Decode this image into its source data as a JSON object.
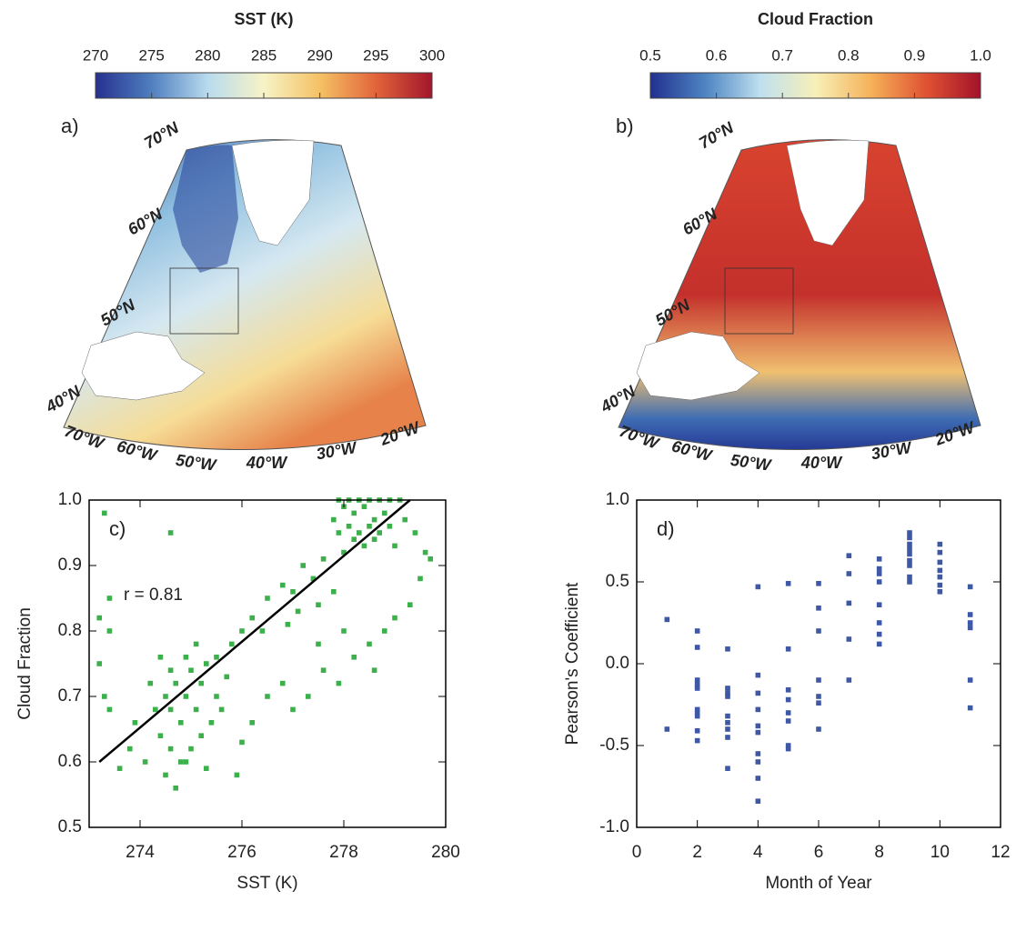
{
  "chart_data": [
    {
      "type": "map",
      "title": "SST (K)",
      "panel_label": "a)",
      "colorbar_ticks": [
        270,
        275,
        280,
        285,
        290,
        295,
        300
      ],
      "colorbar_lim": [
        270,
        300
      ],
      "colormap": [
        "#26318f",
        "#4f7fbf",
        "#b9dbee",
        "#f7f3c6",
        "#f5c165",
        "#e2643a",
        "#a3152b"
      ],
      "lat_labels": [
        "70°N",
        "60°N",
        "50°N",
        "40°N"
      ],
      "lon_labels": [
        "70°W",
        "60°W",
        "50°W",
        "40°W",
        "30°W",
        "20°W"
      ]
    },
    {
      "type": "map",
      "title": "Cloud Fraction",
      "panel_label": "b)",
      "colorbar_ticks": [
        0.5,
        0.6,
        0.7,
        0.8,
        0.9,
        {
          "value": 1,
          "label": "1.0"
        }
      ],
      "colorbar_lim": [
        0.5,
        1
      ],
      "colormap": [
        "#22308f",
        "#4d85c2",
        "#bfe0ef",
        "#f7f0b8",
        "#f6b25a",
        "#e05332",
        "#a3122a"
      ],
      "lat_labels": [
        "70°N",
        "60°N",
        "50°N",
        "40°N"
      ],
      "lon_labels": [
        "70°W",
        "60°W",
        "50°W",
        "40°W",
        "30°W",
        "20°W"
      ]
    },
    {
      "type": "scatter",
      "panel_label": "c)",
      "annotation": "r = 0.81",
      "x_label": "SST (K)",
      "y_label": "Cloud Fraction",
      "color": "#3cb04a",
      "xlim": [
        273,
        280
      ],
      "xticks": [
        274,
        276,
        278,
        280
      ],
      "ylim": [
        0.5,
        1
      ],
      "yticks": [
        0.5,
        0.6,
        0.7,
        0.8,
        0.9,
        {
          "value": 1,
          "label": "1.0"
        }
      ],
      "x": [
        277.9,
        278.1,
        278.3,
        278.5,
        278.7,
        278.9,
        279.1,
        278.0,
        278.2,
        278.4,
        278.6,
        278.8,
        278.1,
        278.3,
        278.5,
        277.9,
        278.2,
        278.4,
        278.6,
        278.0,
        278.7,
        277.8,
        278.9,
        279.2,
        279.4,
        279.6,
        279.0,
        276.5,
        276.8,
        277.0,
        277.2,
        277.4,
        277.6,
        276.2,
        276.0,
        275.8,
        275.5,
        276.4,
        277.1,
        277.5,
        277.8,
        276.9,
        274.5,
        274.6,
        274.7,
        274.8,
        274.9,
        275.0,
        275.1,
        275.2,
        275.3,
        274.4,
        274.6,
        274.8,
        274.5,
        274.7,
        275.0,
        275.2,
        275.4,
        274.3,
        274.2,
        274.9,
        275.1,
        275.5,
        275.6,
        274.1,
        273.9,
        274.4,
        274.6,
        275.7,
        274.9,
        275.3,
        276.5,
        276.8,
        277.0,
        277.3,
        277.6,
        277.9,
        278.2,
        278.5,
        278.8,
        279.0,
        279.3,
        276.2,
        275.9,
        276.0,
        277.5,
        278.0,
        278.6,
        279.5,
        279.7,
        273.3,
        273.4,
        273.2,
        273.3,
        273.4,
        273.6,
        273.2,
        274.6,
        273.8,
        273.4
      ],
      "values": [
        1.0,
        1.0,
        1.0,
        1.0,
        1.0,
        1.0,
        1.0,
        0.99,
        0.98,
        0.99,
        0.97,
        0.98,
        0.96,
        0.95,
        0.96,
        0.95,
        0.94,
        0.93,
        0.94,
        0.92,
        0.95,
        0.97,
        0.96,
        0.97,
        0.95,
        0.92,
        0.93,
        0.85,
        0.87,
        0.86,
        0.9,
        0.88,
        0.91,
        0.82,
        0.8,
        0.78,
        0.76,
        0.8,
        0.83,
        0.84,
        0.86,
        0.81,
        0.7,
        0.68,
        0.72,
        0.66,
        0.7,
        0.74,
        0.68,
        0.72,
        0.75,
        0.64,
        0.62,
        0.6,
        0.58,
        0.56,
        0.62,
        0.64,
        0.66,
        0.68,
        0.72,
        0.76,
        0.78,
        0.7,
        0.68,
        0.6,
        0.66,
        0.76,
        0.74,
        0.73,
        0.6,
        0.59,
        0.7,
        0.72,
        0.68,
        0.7,
        0.74,
        0.72,
        0.76,
        0.78,
        0.8,
        0.82,
        0.84,
        0.66,
        0.58,
        0.63,
        0.78,
        0.8,
        0.74,
        0.88,
        0.91,
        0.98,
        0.85,
        0.82,
        0.7,
        0.68,
        0.59,
        0.75,
        0.95,
        0.62,
        0.8
      ],
      "fit": {
        "x": [
          273.2,
          279.3
        ],
        "values": [
          0.6,
          1
        ]
      }
    },
    {
      "type": "scatter",
      "panel_label": "d)",
      "x_label": "Month of Year",
      "y_label": "Pearson's Coefficient",
      "color": "#3f58a6",
      "xlim": [
        0,
        12
      ],
      "xticks": [
        0,
        2,
        4,
        6,
        8,
        10,
        12
      ],
      "ylim": [
        -1,
        1
      ],
      "yticks": [
        {
          "value": -1,
          "label": "-1.0"
        },
        -0.5,
        {
          "value": 0,
          "label": "0.0"
        },
        0.5,
        {
          "value": 1,
          "label": "1.0"
        }
      ],
      "x": [
        1,
        1,
        2,
        2,
        2,
        2,
        2,
        2,
        2,
        2,
        2,
        2,
        2,
        3,
        3,
        3,
        3,
        3,
        3,
        3,
        3,
        3,
        4,
        4,
        4,
        4,
        4,
        4,
        4,
        4,
        4,
        4,
        5,
        5,
        5,
        5,
        5,
        5,
        5,
        5,
        6,
        6,
        6,
        6,
        6,
        6,
        6,
        7,
        7,
        7,
        7,
        7,
        8,
        8,
        8,
        8,
        8,
        8,
        8,
        8,
        9,
        9,
        9,
        9,
        9,
        9,
        9,
        9,
        9,
        10,
        10,
        10,
        10,
        10,
        10,
        10,
        11,
        11,
        11,
        11,
        11,
        11
      ],
      "values": [
        0.27,
        -0.4,
        0.2,
        0.1,
        -0.1,
        -0.12,
        -0.14,
        -0.15,
        -0.28,
        -0.3,
        -0.32,
        -0.41,
        -0.47,
        0.09,
        -0.15,
        -0.18,
        -0.2,
        -0.32,
        -0.36,
        -0.4,
        -0.45,
        -0.64,
        0.47,
        -0.07,
        -0.18,
        -0.28,
        -0.38,
        -0.42,
        -0.55,
        -0.6,
        -0.7,
        -0.84,
        0.49,
        0.09,
        -0.16,
        -0.22,
        -0.3,
        -0.35,
        -0.5,
        -0.52,
        0.49,
        0.34,
        0.2,
        -0.1,
        -0.2,
        -0.24,
        -0.4,
        0.66,
        0.55,
        0.37,
        0.15,
        -0.1,
        0.64,
        0.58,
        0.55,
        0.5,
        0.36,
        0.25,
        0.18,
        0.12,
        0.8,
        0.77,
        0.73,
        0.7,
        0.67,
        0.63,
        0.6,
        0.53,
        0.5,
        0.73,
        0.68,
        0.62,
        0.57,
        0.53,
        0.48,
        0.44,
        0.47,
        0.3,
        0.25,
        0.22,
        -0.1,
        -0.27
      ]
    }
  ]
}
